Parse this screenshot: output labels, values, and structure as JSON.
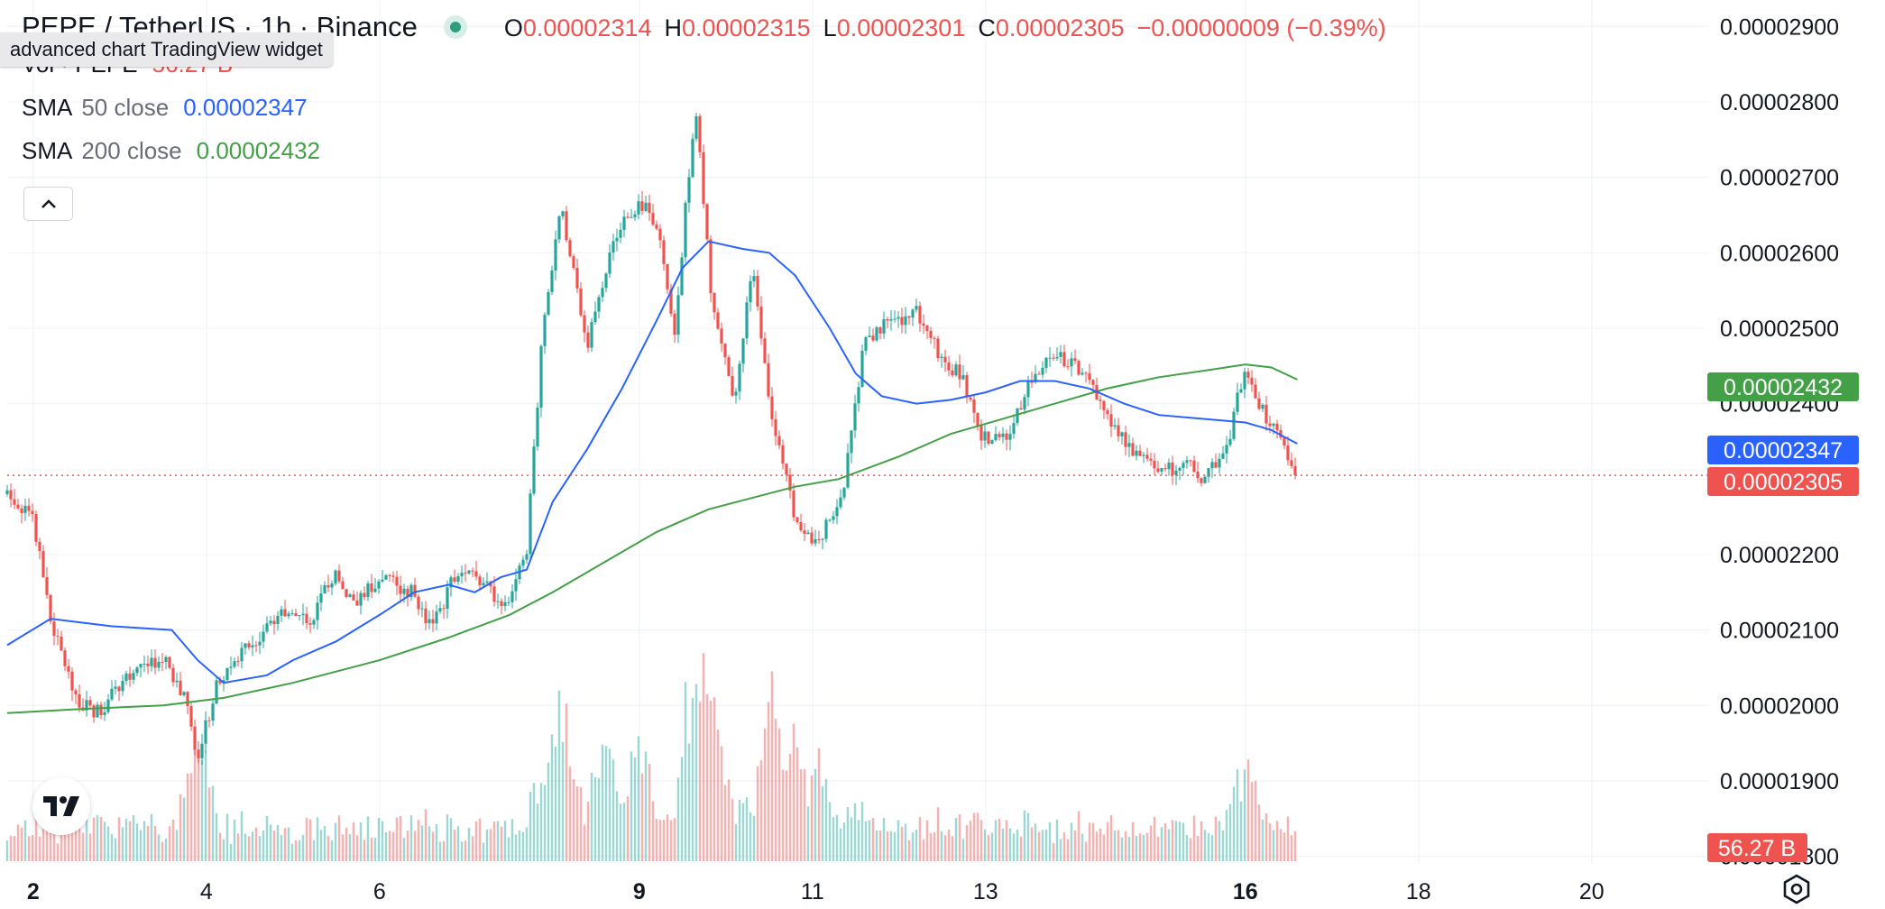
{
  "header": {
    "title": "PEPE / TetherUS · 1h · Binance",
    "ohlc": [
      {
        "key": "O",
        "value": "0.00002314"
      },
      {
        "key": "H",
        "value": "0.00002315"
      },
      {
        "key": "L",
        "value": "0.00002301"
      },
      {
        "key": "C",
        "value": "0.00002305"
      }
    ],
    "change": "−0.00000009 (−0.39%)",
    "tooltip": "advanced chart TradingView widget"
  },
  "indicators": {
    "volume": {
      "label": "Vol · PEPE",
      "value": "56.27 B",
      "color": "#ef5350"
    },
    "sma50": {
      "label": "SMA",
      "params": "50 close",
      "value": "0.00002347",
      "color": "#2962ff"
    },
    "sma200": {
      "label": "SMA",
      "params": "200 close",
      "value": "0.00002432",
      "color": "#43a047"
    }
  },
  "icons": {
    "collapse": "chevron-up-icon",
    "logo": "tradingview-logo-icon",
    "settings": "settings-hexagon-icon"
  },
  "colors": {
    "up": "#26a69a",
    "down": "#ef5350",
    "grid": "#f0f3fa",
    "axis_text": "#131722"
  },
  "chart_data": {
    "type": "candlestick",
    "title": "PEPE / TetherUS · 1h · Binance",
    "xlabel": "",
    "ylabel": "",
    "grid": true,
    "x_tick_labels": [
      "2",
      "4",
      "6",
      "9",
      "11",
      "13",
      "16",
      "18",
      "20"
    ],
    "x_tick_days": [
      2,
      4,
      6,
      9,
      11,
      13,
      16,
      18,
      20
    ],
    "x_range_days": [
      1.7,
      21.2
    ],
    "y_tick_labels": [
      "0.00002900",
      "0.00002800",
      "0.00002700",
      "0.00002600",
      "0.00002500",
      "0.00002400",
      "0.00002300",
      "0.00002200",
      "0.00002100",
      "0.00002000",
      "0.00001900",
      "0.00001800"
    ],
    "y_tick_values": [
      2900,
      2800,
      2700,
      2600,
      2500,
      2400,
      2300,
      2200,
      2100,
      2000,
      1900,
      1800
    ],
    "y_unit_scale": "1e-8",
    "y_range": [
      1790,
      2935
    ],
    "last_close": 2305,
    "price_labels": [
      {
        "name": "SMA 200",
        "value": "0.00002432",
        "color": "#43a047"
      },
      {
        "name": "SMA 50",
        "value": "0.00002347",
        "color": "#2962ff"
      },
      {
        "name": "Close",
        "value": "0.00002305",
        "color": "#ef5350"
      }
    ],
    "volume_label": {
      "value": "56.27 B",
      "color": "#ef5350"
    },
    "price_path": [
      [
        1.7,
        2280
      ],
      [
        2.0,
        2250
      ],
      [
        2.2,
        2110
      ],
      [
        2.5,
        2010
      ],
      [
        2.75,
        1990
      ],
      [
        3.0,
        2030
      ],
      [
        3.25,
        2050
      ],
      [
        3.5,
        2060
      ],
      [
        3.75,
        2010
      ],
      [
        3.9,
        1930
      ],
      [
        4.1,
        2020
      ],
      [
        4.3,
        2060
      ],
      [
        4.6,
        2090
      ],
      [
        4.9,
        2120
      ],
      [
        5.2,
        2110
      ],
      [
        5.5,
        2180
      ],
      [
        5.7,
        2130
      ],
      [
        6.0,
        2170
      ],
      [
        6.4,
        2150
      ],
      [
        6.6,
        2100
      ],
      [
        6.9,
        2180
      ],
      [
        7.3,
        2150
      ],
      [
        7.5,
        2130
      ],
      [
        7.7,
        2210
      ],
      [
        7.9,
        2520
      ],
      [
        8.1,
        2660
      ],
      [
        8.4,
        2480
      ],
      [
        8.7,
        2620
      ],
      [
        9.0,
        2670
      ],
      [
        9.2,
        2640
      ],
      [
        9.4,
        2490
      ],
      [
        9.65,
        2800
      ],
      [
        9.85,
        2520
      ],
      [
        10.1,
        2400
      ],
      [
        10.3,
        2580
      ],
      [
        10.55,
        2370
      ],
      [
        10.8,
        2250
      ],
      [
        11.05,
        2210
      ],
      [
        11.35,
        2280
      ],
      [
        11.6,
        2480
      ],
      [
        11.9,
        2510
      ],
      [
        12.2,
        2520
      ],
      [
        12.5,
        2460
      ],
      [
        12.75,
        2430
      ],
      [
        12.95,
        2360
      ],
      [
        13.2,
        2350
      ],
      [
        13.5,
        2420
      ],
      [
        13.8,
        2470
      ],
      [
        14.1,
        2440
      ],
      [
        14.4,
        2390
      ],
      [
        14.7,
        2330
      ],
      [
        15.0,
        2310
      ],
      [
        15.3,
        2320
      ],
      [
        15.55,
        2300
      ],
      [
        15.8,
        2350
      ],
      [
        16.0,
        2450
      ],
      [
        16.2,
        2390
      ],
      [
        16.4,
        2360
      ],
      [
        16.6,
        2305
      ]
    ],
    "sma50_path": [
      [
        1.7,
        2080
      ],
      [
        2.2,
        2115
      ],
      [
        2.9,
        2105
      ],
      [
        3.6,
        2100
      ],
      [
        3.9,
        2060
      ],
      [
        4.2,
        2030
      ],
      [
        4.7,
        2040
      ],
      [
        5.0,
        2060
      ],
      [
        5.5,
        2085
      ],
      [
        6.0,
        2120
      ],
      [
        6.4,
        2150
      ],
      [
        6.8,
        2160
      ],
      [
        7.1,
        2150
      ],
      [
        7.4,
        2170
      ],
      [
        7.7,
        2180
      ],
      [
        8.0,
        2270
      ],
      [
        8.4,
        2340
      ],
      [
        8.8,
        2420
      ],
      [
        9.2,
        2510
      ],
      [
        9.5,
        2580
      ],
      [
        9.8,
        2615
      ],
      [
        10.2,
        2605
      ],
      [
        10.5,
        2600
      ],
      [
        10.8,
        2570
      ],
      [
        11.2,
        2500
      ],
      [
        11.5,
        2440
      ],
      [
        11.8,
        2410
      ],
      [
        12.2,
        2400
      ],
      [
        12.6,
        2405
      ],
      [
        13.0,
        2415
      ],
      [
        13.4,
        2430
      ],
      [
        13.8,
        2430
      ],
      [
        14.2,
        2420
      ],
      [
        14.6,
        2400
      ],
      [
        15.0,
        2385
      ],
      [
        15.5,
        2380
      ],
      [
        16.0,
        2375
      ],
      [
        16.3,
        2365
      ],
      [
        16.6,
        2347
      ]
    ],
    "sma200_path": [
      [
        1.7,
        1990
      ],
      [
        2.5,
        1995
      ],
      [
        3.5,
        2000
      ],
      [
        4.2,
        2010
      ],
      [
        5.0,
        2030
      ],
      [
        6.0,
        2060
      ],
      [
        6.8,
        2090
      ],
      [
        7.5,
        2120
      ],
      [
        8.0,
        2150
      ],
      [
        8.6,
        2190
      ],
      [
        9.2,
        2230
      ],
      [
        9.8,
        2260
      ],
      [
        10.3,
        2275
      ],
      [
        10.8,
        2290
      ],
      [
        11.3,
        2300
      ],
      [
        12.0,
        2330
      ],
      [
        12.6,
        2360
      ],
      [
        13.2,
        2380
      ],
      [
        13.8,
        2400
      ],
      [
        14.4,
        2420
      ],
      [
        15.0,
        2435
      ],
      [
        15.6,
        2445
      ],
      [
        16.0,
        2452
      ],
      [
        16.3,
        2448
      ],
      [
        16.6,
        2432
      ]
    ],
    "volume_spikes": [
      [
        3.9,
        0.9
      ],
      [
        8.1,
        1.1
      ],
      [
        8.6,
        0.85
      ],
      [
        9.0,
        0.95
      ],
      [
        9.65,
        1.6
      ],
      [
        9.85,
        1.2
      ],
      [
        10.55,
        1.15
      ],
      [
        10.8,
        0.9
      ],
      [
        11.05,
        0.8
      ],
      [
        16.0,
        0.6
      ]
    ]
  }
}
